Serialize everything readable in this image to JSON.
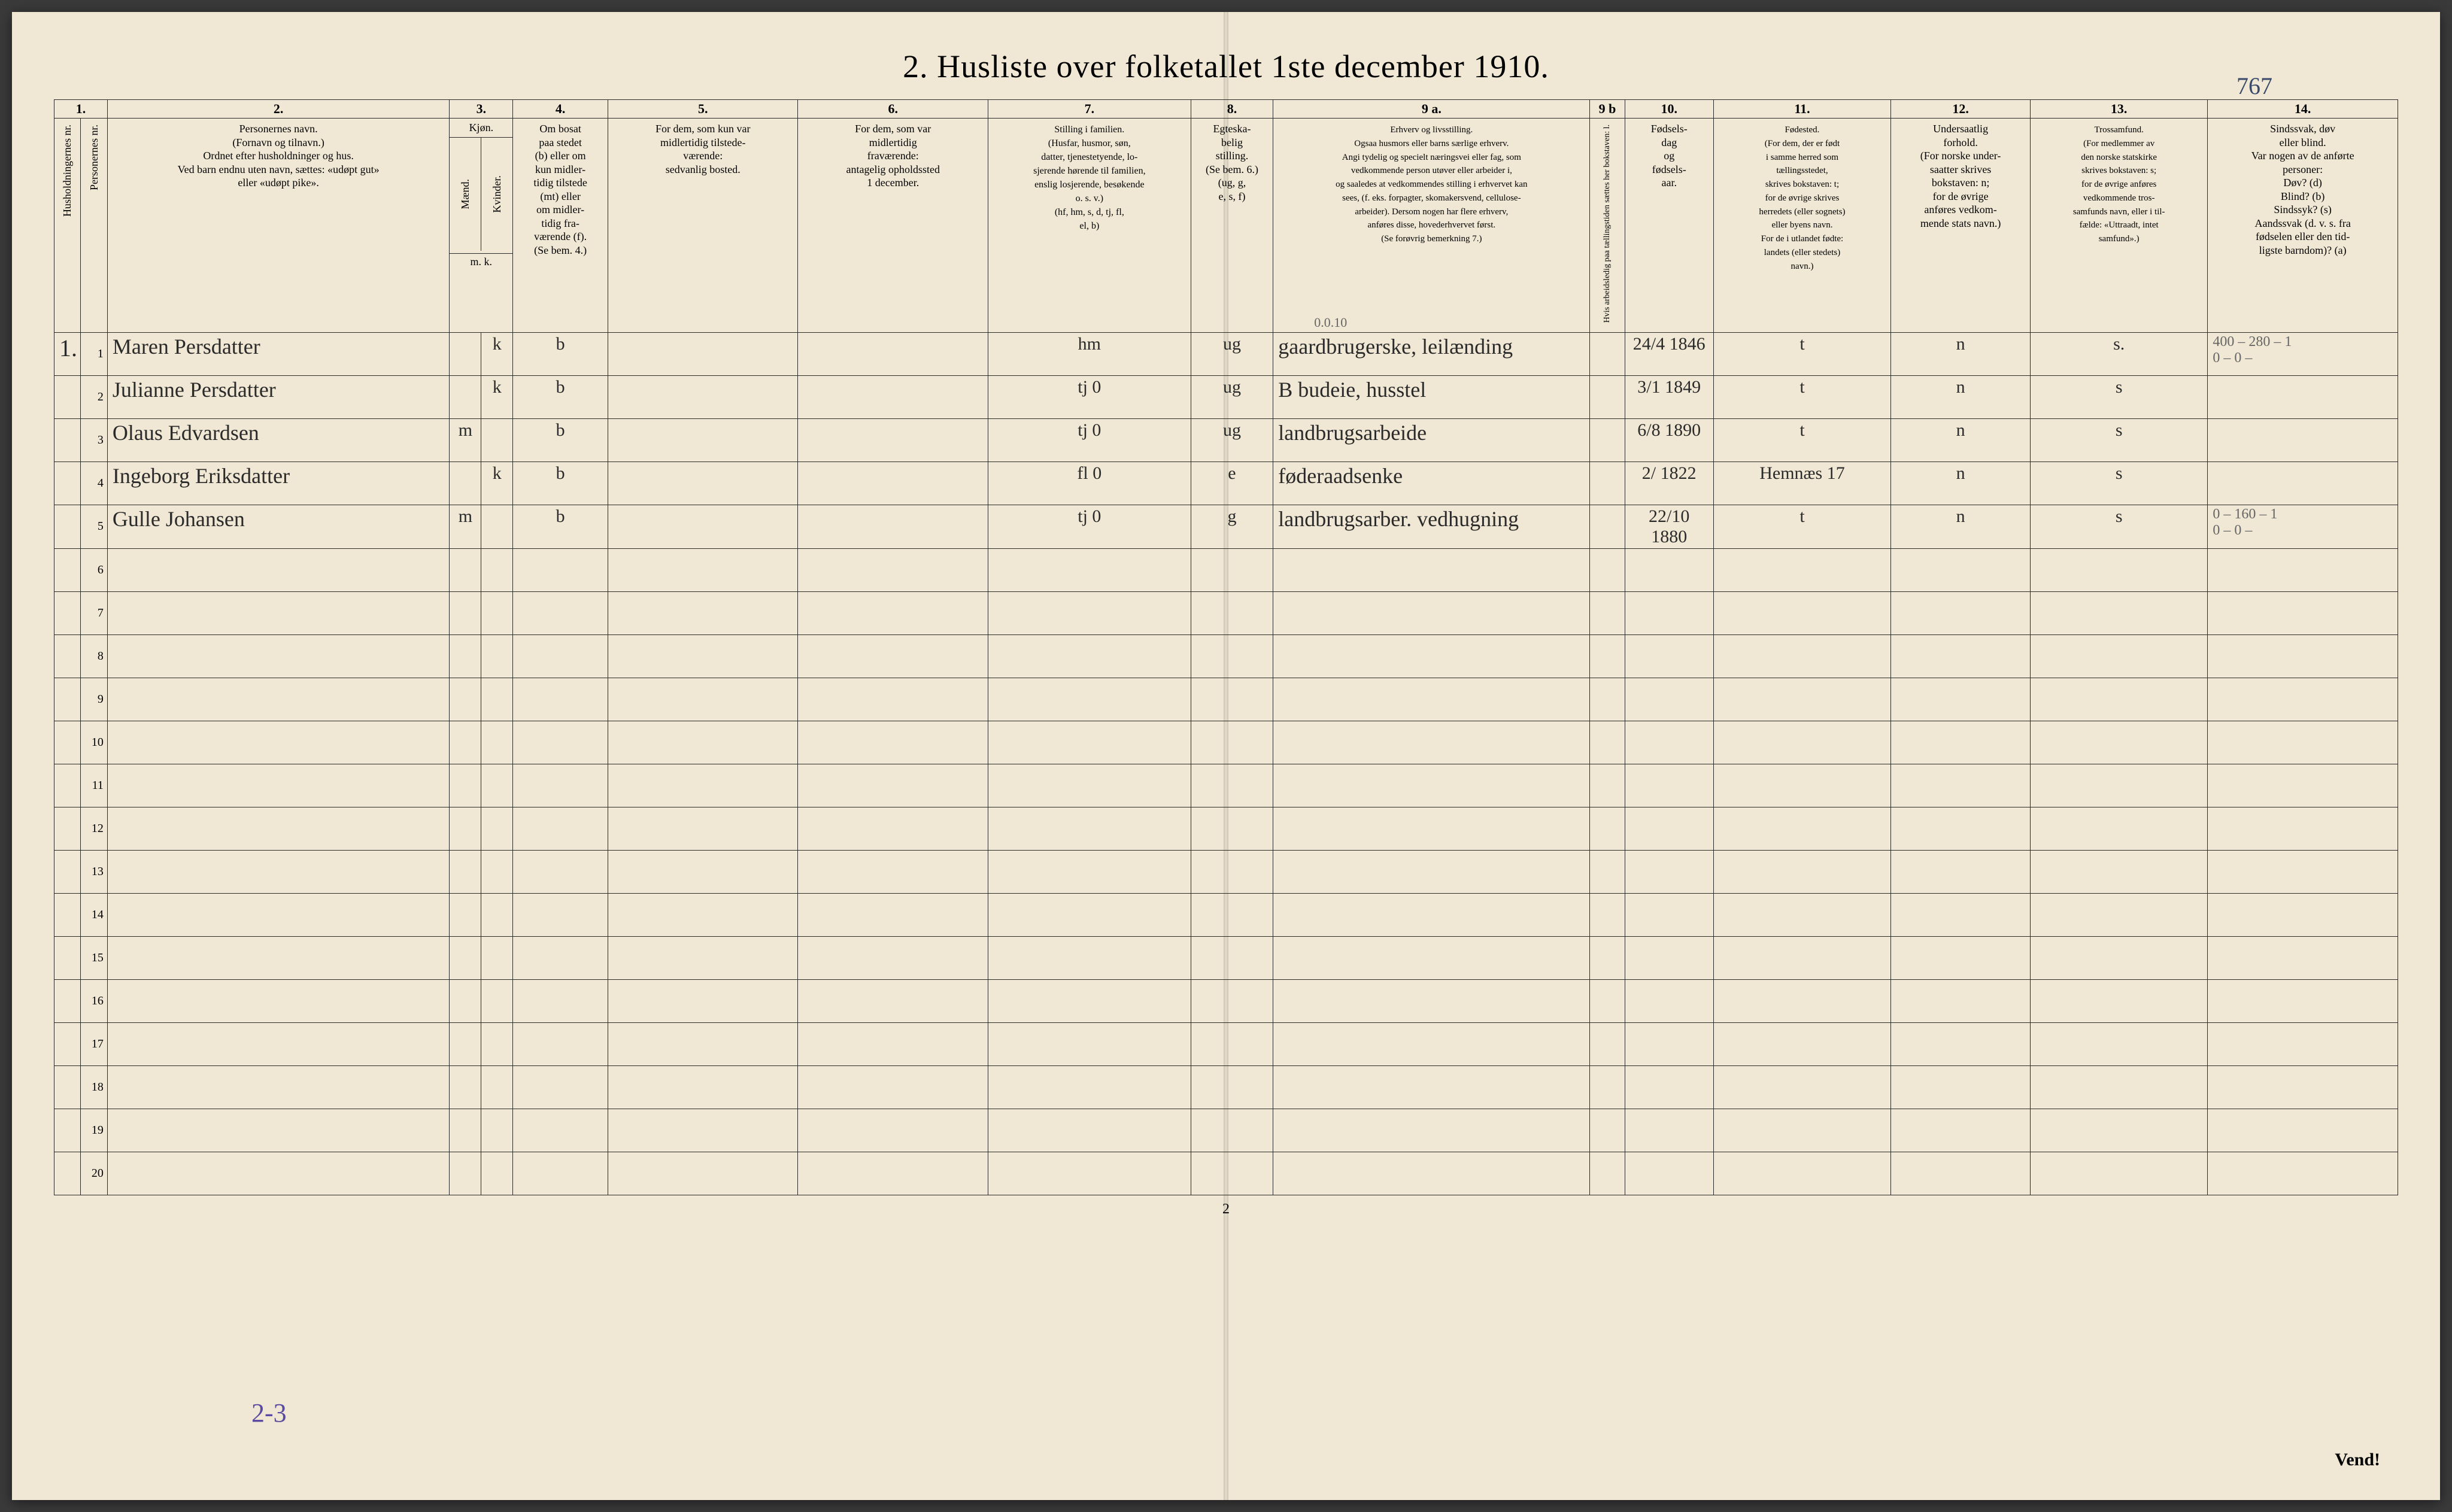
{
  "title": "2.  Husliste over folketallet 1ste december 1910.",
  "handwritten_top_right": "767",
  "footer_page_number": "2",
  "footer_vend": "Vend!",
  "footer_23": "2-3",
  "margin_notes": {
    "above_row1_col9": "0.0.10",
    "above_row1_col14": "400 – 280 – 1",
    "below_row1_col14": "0  – 0 –",
    "row5_col14_a": "0 – 160 – 1",
    "row5_col14_b": "0 – 0 –"
  },
  "column_numbers": [
    "1.",
    "",
    "2.",
    "3.",
    "",
    "4.",
    "5.",
    "6.",
    "7.",
    "8.",
    "9 a.",
    "9 b",
    "10.",
    "11.",
    "12.",
    "13.",
    "14."
  ],
  "headers": {
    "c1": "Husholdningernes nr.",
    "c1b": "Personernes nr.",
    "c2": "Personernes navn.\n(Fornavn og tilnavn.)\nOrdnet efter husholdninger og hus.\nVed barn endnu uten navn, sættes: «udøpt gut»\neller «udøpt pike».",
    "c3": "Kjøn.",
    "c3a": "Mænd.",
    "c3b": "Kvinder.",
    "c3_mk": "m.   k.",
    "c4": "Om  bosat\npaa stedet\n(b) eller om\nkun midler-\ntidig tilstede\n(mt) eller\nom midler-\ntidig fra-\nværende (f).\n(Se bem. 4.)",
    "c5": "For dem, som kun var\nmidlertidig tilstede-\nværende:\nsedvanlig bosted.",
    "c6": "For dem, som var\nmidlertidig\nfraværende:\nantagelig opholdssted\n1 december.",
    "c7": "Stilling i familien.\n(Husfar, husmor, søn,\ndatter, tjenestetyende, lo-\nsjerende hørende til familien,\nenslig losjerende, besøkende\no. s. v.)\n(hf, hm, s, d, tj, fl,\nel, b)",
    "c8": "Egteska-\nbelig\nstilling.\n(Se bem. 6.)\n(ug, g,\ne, s, f)",
    "c9a": "Erhverv og livsstilling.\nOgsaa husmors eller barns særlige erhverv.\nAngi tydelig og specielt næringsvei eller fag, som\nvedkommende person utøver eller arbeider i,\nog saaledes at vedkommendes stilling i erhvervet kan\nsees, (f. eks. forpagter, skomakersvend, cellulose-\narbeider).  Dersom nogen har flere erhverv,\nanføres disse, hovederhvervet først.\n(Se forøvrig bemerkning 7.)",
    "c9b": "Hvis arbeidsledig\npaa tællingstiden sættes\nher bokstaven: l.",
    "c10": "Fødsels-\ndag\nog\nfødsels-\naar.",
    "c11": "Fødested.\n(For dem, der er født\ni samme herred som\ntællingsstedet,\nskrives bokstaven: t;\nfor de øvrige skrives\nherredets (eller sognets)\neller byens navn.\nFor de i utlandet fødte:\nlandets (eller stedets)\nnavn.)",
    "c12": "Undersaatlig\nforhold.\n(For norske under-\nsaatter skrives\nbokstaven: n;\nfor de øvrige\nanføres vedkom-\nmende stats navn.)",
    "c13": "Trossamfund.\n(For medlemmer av\nden norske statskirke\nskrives bokstaven: s;\nfor de øvrige anføres\nvedkommende tros-\nsamfunds navn, eller i til-\nfælde: «Uttraadt, intet\nsamfund».)",
    "c14": "Sindssvak, døv\neller blind.\nVar nogen av de anførte\npersoner:\nDøv?        (d)\nBlind?      (b)\nSindssyk?  (s)\nAandssvak (d. v. s. fra\nfødselen eller den tid-\nligste barndom)?  (a)"
  },
  "rows": [
    {
      "household": "1.",
      "person": "1",
      "name": "Maren Persdatter",
      "sex_m": "",
      "sex_k": "k",
      "bosat": "b",
      "c5": "",
      "c6": "",
      "c7": "hm",
      "c8": "ug",
      "c9a": "gaardbrugerske, leilænding",
      "c9b": "",
      "c10": "24/4 1846",
      "c11": "t",
      "c12": "n",
      "c13": "s.",
      "c14": ""
    },
    {
      "household": "",
      "person": "2",
      "name": "Julianne Persdatter",
      "sex_m": "",
      "sex_k": "k",
      "bosat": "b",
      "c5": "",
      "c6": "",
      "c7": "tj    0",
      "c8": "ug",
      "c9a": "B budeie, husstel",
      "c9b": "",
      "c10": "3/1 1849",
      "c11": "t",
      "c12": "n",
      "c13": "s",
      "c14": ""
    },
    {
      "household": "",
      "person": "3",
      "name": "Olaus Edvardsen",
      "sex_m": "m",
      "sex_k": "",
      "bosat": "b",
      "c5": "",
      "c6": "",
      "c7": "tj    0",
      "c8": "ug",
      "c9a": "landbrugsarbeide",
      "c9b": "",
      "c10": "6/8 1890",
      "c11": "t",
      "c12": "n",
      "c13": "s",
      "c14": ""
    },
    {
      "household": "",
      "person": "4",
      "name": "Ingeborg Eriksdatter",
      "sex_m": "",
      "sex_k": "k",
      "bosat": "b",
      "c5": "",
      "c6": "",
      "c7": "fl    0",
      "c8": "e",
      "c9a": "føderaadsenke",
      "c9b": "",
      "c10": "2/ 1822",
      "c11": "Hemnæs 17",
      "c12": "n",
      "c13": "s",
      "c14": ""
    },
    {
      "household": "",
      "person": "5",
      "name": "Gulle Johansen",
      "sex_m": "m",
      "sex_k": "",
      "bosat": "b",
      "c5": "",
      "c6": "",
      "c7": "tj    0",
      "c8": "g",
      "c9a": "landbrugsarber. vedhugning",
      "c9b": "",
      "c10": "22/10 1880",
      "c11": "t",
      "c12": "n",
      "c13": "s",
      "c14": ""
    }
  ],
  "empty_rows": [
    "6",
    "7",
    "8",
    "9",
    "10",
    "11",
    "12",
    "13",
    "14",
    "15",
    "16",
    "17",
    "18",
    "19",
    "20"
  ]
}
